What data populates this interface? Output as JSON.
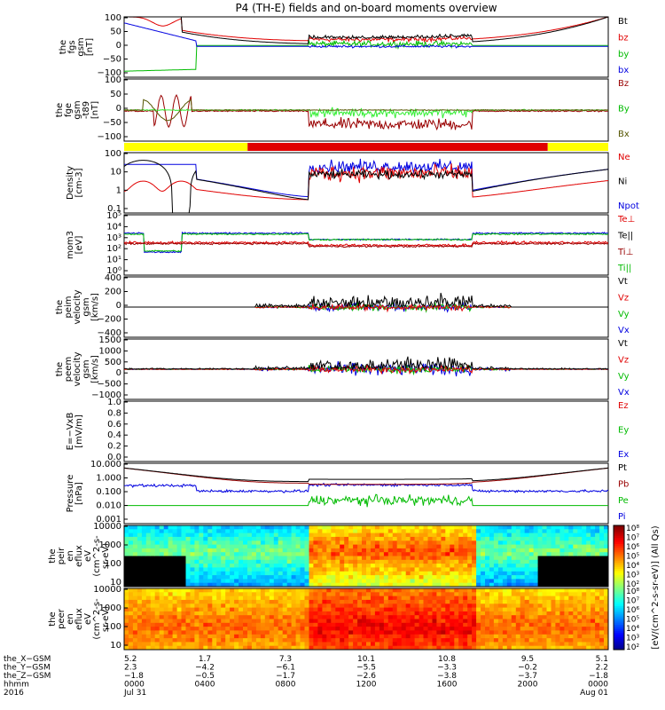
{
  "title": "P4 (TH-E) fields and on-board moments overview",
  "colors": {
    "black": "#000000",
    "red": "#e00000",
    "darkred": "#990000",
    "green": "#00dd00",
    "lightgreen": "#33ee33",
    "blue": "#0000e0",
    "yellow": "#ffff00"
  },
  "chart_data": [
    {
      "type": "line",
      "ylabel": [
        "the",
        "fgs",
        "gsm",
        "[nT]"
      ],
      "yticks": [
        "100",
        "50",
        "0",
        "−50",
        "−100"
      ],
      "ylim": [
        -100,
        100
      ],
      "legend": [
        {
          "label": "Bt",
          "color": "#000000"
        },
        {
          "label": "bz",
          "color": "#e00000"
        },
        {
          "label": "by",
          "color": "#00bb00"
        },
        {
          "label": "bx",
          "color": "#0000e0"
        }
      ]
    },
    {
      "type": "line",
      "ylabel": [
        "the",
        "fge",
        "gsm",
        "-t89",
        "[nT]"
      ],
      "yticks": [
        "100",
        "50",
        "0",
        "−50",
        "−100"
      ],
      "ylim": [
        -120,
        120
      ],
      "legend": [
        {
          "label": "Bz",
          "color": "#990000"
        },
        {
          "label": "By",
          "color": "#00bb00"
        },
        {
          "label": "Bx",
          "color": "#555500"
        }
      ]
    },
    {
      "type": "bar",
      "name": "mode",
      "segments": [
        {
          "from": 0.0,
          "to": 0.255,
          "color": "#ffff00"
        },
        {
          "from": 0.255,
          "to": 0.875,
          "color": "#e00000"
        },
        {
          "from": 0.875,
          "to": 1.0,
          "color": "#ffff00"
        }
      ]
    },
    {
      "type": "line",
      "ylabel": [
        "Density",
        "[cm-3]"
      ],
      "yticks": [
        "100",
        "10",
        "1",
        "0.1"
      ],
      "log": true,
      "ylim": [
        0.05,
        200
      ],
      "legend": [
        {
          "label": "Ne",
          "color": "#e00000"
        },
        {
          "label": "Ni",
          "color": "#000000"
        },
        {
          "label": "Npot",
          "color": "#0000e0"
        }
      ]
    },
    {
      "type": "line",
      "ylabel": [
        "mom3",
        "[eV]"
      ],
      "yticks": [
        "10⁵",
        "10⁴",
        "10³",
        "10²",
        "10¹",
        "10⁰"
      ],
      "log": true,
      "ylim": [
        1,
        100000
      ],
      "legend": [
        {
          "label": "Te⊥",
          "color": "#e00000"
        },
        {
          "label": "Te||",
          "color": "#000000"
        },
        {
          "label": "Ti⊥",
          "color": "#990000"
        },
        {
          "label": "Ti||",
          "color": "#00bb00"
        }
      ]
    },
    {
      "type": "line",
      "ylabel": [
        "the",
        "peim",
        "velocity",
        "gsm",
        "[km/s]"
      ],
      "yticks": [
        "400",
        "200",
        "0",
        "−200",
        "−400"
      ],
      "ylim": [
        -400,
        400
      ],
      "legend": [
        {
          "label": "Vt",
          "color": "#000000"
        },
        {
          "label": "Vz",
          "color": "#e00000"
        },
        {
          "label": "Vy",
          "color": "#00bb00"
        },
        {
          "label": "Vx",
          "color": "#0000e0"
        }
      ]
    },
    {
      "type": "line",
      "ylabel": [
        "the",
        "peem",
        "velocity",
        "gsm",
        "[km/s]"
      ],
      "yticks": [
        "1500",
        "1000",
        "500",
        "0",
        "−500",
        "−1000"
      ],
      "ylim": [
        -1500,
        1500
      ],
      "legend": [
        {
          "label": "Vt",
          "color": "#000000"
        },
        {
          "label": "Vz",
          "color": "#e00000"
        },
        {
          "label": "Vy",
          "color": "#00bb00"
        },
        {
          "label": "Vx",
          "color": "#0000e0"
        }
      ]
    },
    {
      "type": "line",
      "ylabel": [
        "E=−VxB",
        "[mV/m]"
      ],
      "yticks": [
        "1.0",
        "0.8",
        "0.6",
        "0.4",
        "0.2",
        "0.0"
      ],
      "ylim": [
        0,
        1
      ],
      "legend": [
        {
          "label": "Ez",
          "color": "#e00000"
        },
        {
          "label": "Ey",
          "color": "#00bb00"
        },
        {
          "label": "Ex",
          "color": "#0000e0"
        }
      ]
    },
    {
      "type": "line",
      "ylabel": [
        "Pressure",
        "[nPa]"
      ],
      "yticks": [
        "10.000",
        "1.000",
        "0.100",
        "0.010",
        "0.001"
      ],
      "log": true,
      "ylim": [
        0.0005,
        20
      ],
      "legend": [
        {
          "label": "Pt",
          "color": "#000000"
        },
        {
          "label": "Pb",
          "color": "#990000"
        },
        {
          "label": "Pe",
          "color": "#00bb00"
        },
        {
          "label": "Pi",
          "color": "#0000e0"
        }
      ]
    },
    {
      "type": "heatmap",
      "ylabel": [
        "the",
        "peir",
        "en",
        "eflux",
        "eV",
        "(cm^2-s-",
        "sr-eV)"
      ],
      "yticks": [
        "10000",
        "1000",
        "100",
        "10"
      ]
    },
    {
      "type": "heatmap",
      "ylabel": [
        "the",
        "peer",
        "en",
        "eflux",
        "eV",
        "(cm^2-s-",
        "sr-eV)"
      ],
      "yticks": [
        "10000",
        "1000",
        "100",
        "10"
      ]
    }
  ],
  "colorbar": {
    "label": "[eV/(cm^2-s-sr-eV)] (All Qs)",
    "ticks_top": [
      "10⁸",
      "10⁷",
      "10⁶",
      "10⁵",
      "10⁴",
      "10³",
      "10²"
    ],
    "ticks_bottom": [
      "10⁸",
      "10⁷",
      "10⁶",
      "10⁵",
      "10⁴",
      "10³",
      "10²"
    ]
  },
  "xaxis": {
    "rows": [
      {
        "label": "the_X−GSM",
        "values": [
          "5.2",
          "1.7",
          "7.3",
          "10.1",
          "10.8",
          "9.5",
          "5.1"
        ]
      },
      {
        "label": "the_Y−GSM",
        "values": [
          "2.3",
          "−4.2",
          "−6.1",
          "−5.5",
          "−3.3",
          "−0.2",
          "2.2"
        ]
      },
      {
        "label": "the_Z−GSM",
        "values": [
          "−1.8",
          "−0.5",
          "−1.7",
          "−2.6",
          "−3.8",
          "−3.7",
          "−1.8"
        ]
      },
      {
        "label": "hhmm",
        "values": [
          "0000",
          "0400",
          "0800",
          "1200",
          "1600",
          "2000",
          "0000"
        ]
      },
      {
        "label": "2016",
        "values": [
          "Jul 31",
          "",
          "",
          "",
          "",
          "",
          "Aug 01"
        ]
      }
    ]
  }
}
